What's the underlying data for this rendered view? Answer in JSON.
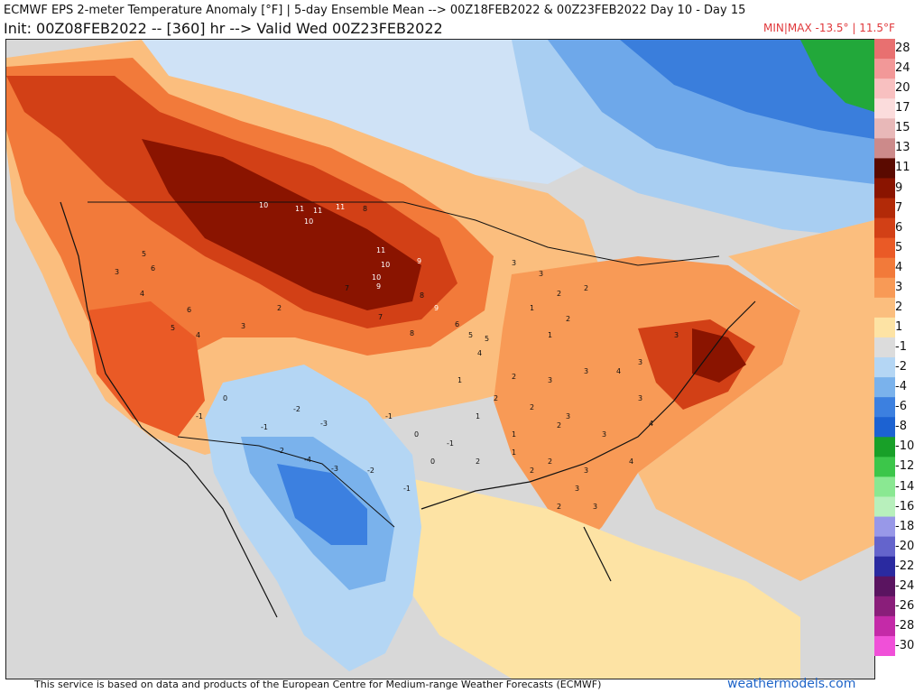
{
  "header": {
    "title_line1": "ECMWF EPS 2-meter Temperature Anomaly [°F] | 5-day Ensemble Mean --> 00Z18FEB2022 & 00Z23FEB2022   Day 10 - Day 15",
    "title_line2": "Init: 00Z08FEB2022 -- [360] hr --> Valid Wed 00Z23FEB2022",
    "minmax": "MIN|MAX -13.5° | 11.5°F"
  },
  "legend": {
    "levels": [
      {
        "label": "28",
        "color": "#e87070"
      },
      {
        "label": "24",
        "color": "#f29898"
      },
      {
        "label": "20",
        "color": "#f8c0c0"
      },
      {
        "label": "17",
        "color": "#fbdcdc"
      },
      {
        "label": "15",
        "color": "#e8b8b8"
      },
      {
        "label": "13",
        "color": "#cc8a8a"
      },
      {
        "label": "11",
        "color": "#5a0a00"
      },
      {
        "label": "9",
        "color": "#8a1400"
      },
      {
        "label": "7",
        "color": "#b22a08"
      },
      {
        "label": "6",
        "color": "#d24016"
      },
      {
        "label": "5",
        "color": "#ea5a26"
      },
      {
        "label": "4",
        "color": "#f27a3a"
      },
      {
        "label": "3",
        "color": "#f89a56"
      },
      {
        "label": "2",
        "color": "#fbbe7e"
      },
      {
        "label": "1",
        "color": "#fde3a4"
      },
      {
        "label": "-1",
        "color": "#dcdcdc"
      },
      {
        "label": "-2",
        "color": "#b4d6f4"
      },
      {
        "label": "-4",
        "color": "#7ab2ec"
      },
      {
        "label": "-6",
        "color": "#3c80e0"
      },
      {
        "label": "-8",
        "color": "#1c62d2"
      },
      {
        "label": "-10",
        "color": "#18a028"
      },
      {
        "label": "-12",
        "color": "#3cc64a"
      },
      {
        "label": "-14",
        "color": "#8ae892"
      },
      {
        "label": "-16",
        "color": "#b8f0bc"
      },
      {
        "label": "-18",
        "color": "#9898e8"
      },
      {
        "label": "-20",
        "color": "#6464cc"
      },
      {
        "label": "-22",
        "color": "#2a2aa0"
      },
      {
        "label": "-24",
        "color": "#5a1460"
      },
      {
        "label": "-26",
        "color": "#8a1e7a"
      },
      {
        "label": "-28",
        "color": "#c42aa8"
      },
      {
        "label": "-30",
        "color": "#f050d8"
      }
    ]
  },
  "map": {
    "label": "5-day mean 2-meter temperature anomaly over North America",
    "values": [
      {
        "v": "10"
      },
      {
        "v": "11"
      },
      {
        "v": "11"
      },
      {
        "v": "11"
      },
      {
        "v": "8"
      },
      {
        "v": "10"
      },
      {
        "v": "11"
      },
      {
        "v": "10"
      },
      {
        "v": "9"
      },
      {
        "v": "10"
      },
      {
        "v": "7"
      },
      {
        "v": "9"
      },
      {
        "v": "8"
      },
      {
        "v": "9"
      },
      {
        "v": "7"
      },
      {
        "v": "8"
      },
      {
        "v": "6"
      },
      {
        "v": "5"
      },
      {
        "v": "5"
      },
      {
        "v": "4"
      },
      {
        "v": "5"
      },
      {
        "v": "6"
      },
      {
        "v": "4"
      },
      {
        "v": "3"
      },
      {
        "v": "6"
      },
      {
        "v": "5"
      },
      {
        "v": "4"
      },
      {
        "v": "3"
      },
      {
        "v": "2"
      },
      {
        "v": "3"
      },
      {
        "v": "3"
      },
      {
        "v": "2"
      },
      {
        "v": "2"
      },
      {
        "v": "1"
      },
      {
        "v": "2"
      },
      {
        "v": "1"
      },
      {
        "v": "0"
      },
      {
        "v": "-1"
      },
      {
        "v": "-2"
      },
      {
        "v": "-1"
      },
      {
        "v": "-3"
      },
      {
        "v": "-2"
      },
      {
        "v": "-4"
      },
      {
        "v": "-3"
      },
      {
        "v": "-2"
      },
      {
        "v": "-1"
      },
      {
        "v": "0"
      },
      {
        "v": "-1"
      },
      {
        "v": "1"
      },
      {
        "v": "2"
      },
      {
        "v": "3"
      },
      {
        "v": "3"
      },
      {
        "v": "4"
      },
      {
        "v": "3"
      },
      {
        "v": "3"
      },
      {
        "v": "2"
      },
      {
        "v": "2"
      },
      {
        "v": "3"
      },
      {
        "v": "3"
      },
      {
        "v": "4"
      },
      {
        "v": "4"
      },
      {
        "v": "3"
      },
      {
        "v": "2"
      },
      {
        "v": "3"
      },
      {
        "v": "2"
      },
      {
        "v": "1"
      },
      {
        "v": "2"
      },
      {
        "v": "3"
      },
      {
        "v": "1"
      },
      {
        "v": "0"
      },
      {
        "v": "-1"
      },
      {
        "v": "1"
      },
      {
        "v": "2"
      },
      {
        "v": "2"
      },
      {
        "v": "3"
      }
    ]
  },
  "footer": {
    "disclaimer": "This service is based on data and products of the European Centre for Medium-range Weather Forecasts (ECMWF)",
    "brand": "weathermodels.com"
  }
}
